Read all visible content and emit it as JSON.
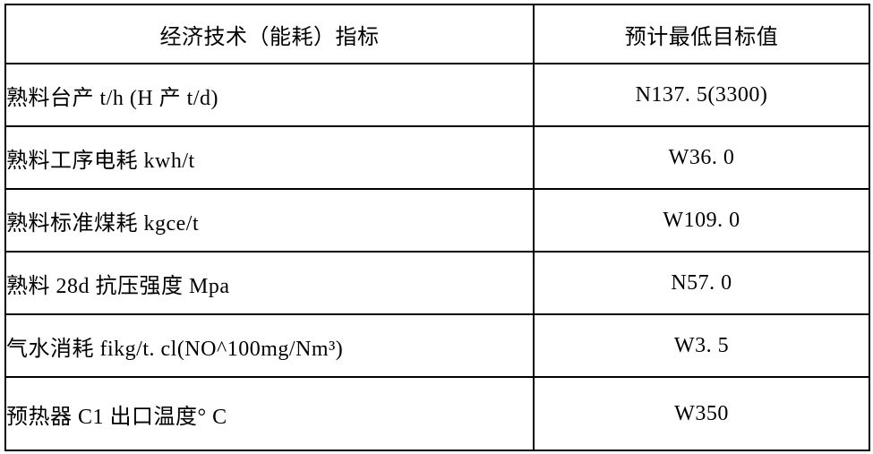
{
  "table": {
    "title": "economic-technical-energy-indicators-table",
    "headers": {
      "indicator": "经济技术（能耗）指标",
      "target": "预计最低目标值"
    },
    "rows": [
      {
        "indicator": "熟料台产 t/h (H 产 t/d)",
        "target": "N137. 5(3300)"
      },
      {
        "indicator": "熟料工序电耗 kwh/t",
        "target": "W36. 0"
      },
      {
        "indicator": "熟料标准煤耗 kgce/t",
        "target": "W109. 0"
      },
      {
        "indicator": "熟料 28d 抗压强度 Mpa",
        "target": "N57. 0"
      },
      {
        "indicator": "气水消耗 fikg/t. cl(NO^100mg/Nm³)",
        "target": "W3. 5"
      },
      {
        "indicator": "预热器 C1 出口温度° C",
        "target": "W350"
      }
    ],
    "colors": {
      "border": "#000000",
      "text": "#000000",
      "background": "#ffffff"
    }
  }
}
